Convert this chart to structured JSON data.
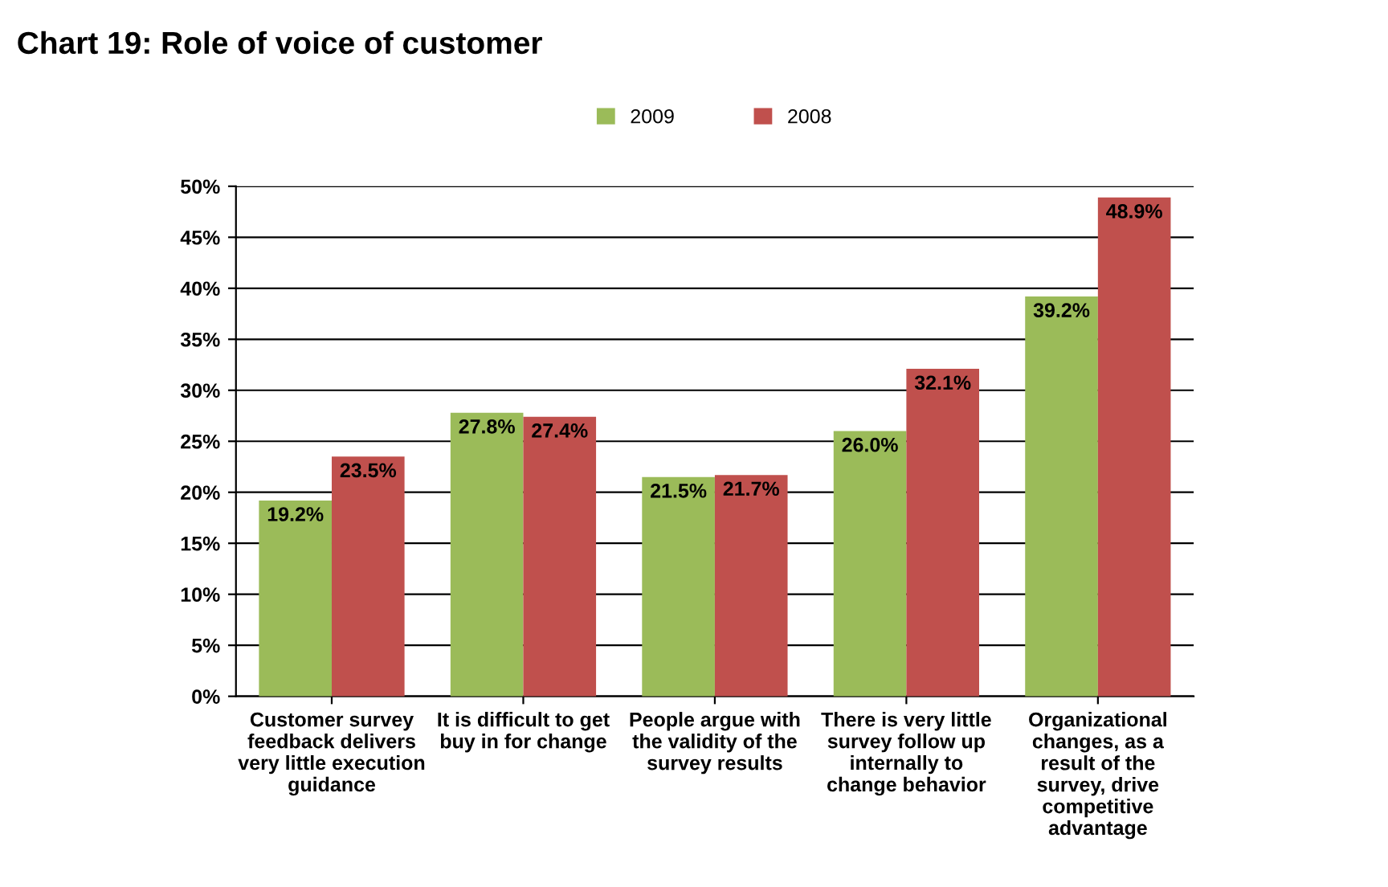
{
  "chart_data": {
    "type": "bar",
    "title": "Chart 19: Role of voice of customer",
    "categories": [
      "Customer survey\nfeedback delivers\nvery little execution\nguidance",
      "It is difficult to get\nbuy in for change",
      "People argue with\nthe validity of the\nsurvey results",
      "There is very little\nsurvey follow up\ninternally to\nchange behavior",
      "Organizational\nchanges, as a\nresult of the\nsurvey, drive\ncompetitive\nadvantage"
    ],
    "series": [
      {
        "name": "2009",
        "color": "#9bbb59",
        "values": [
          19.2,
          27.8,
          21.5,
          26.0,
          39.2
        ],
        "value_labels": [
          "19.2%",
          "27.8%",
          "21.5%",
          "26.0%",
          "39.2%"
        ]
      },
      {
        "name": "2008",
        "color": "#c0504d",
        "values": [
          23.5,
          27.4,
          21.7,
          32.1,
          48.9
        ],
        "value_labels": [
          "23.5%",
          "27.4%",
          "21.7%",
          "32.1%",
          "48.9%"
        ]
      }
    ],
    "ylim": [
      0,
      50
    ],
    "yticks": [
      {
        "value": 0,
        "label": "0%"
      },
      {
        "value": 5,
        "label": "5%"
      },
      {
        "value": 10,
        "label": "10%"
      },
      {
        "value": 15,
        "label": "15%"
      },
      {
        "value": 20,
        "label": "20%"
      },
      {
        "value": 25,
        "label": "25%"
      },
      {
        "value": 30,
        "label": "30%"
      },
      {
        "value": 35,
        "label": "35%"
      },
      {
        "value": 40,
        "label": "40%"
      },
      {
        "value": 45,
        "label": "45%"
      },
      {
        "value": 50,
        "label": "50%"
      }
    ],
    "grid": "y",
    "legend": "top"
  }
}
